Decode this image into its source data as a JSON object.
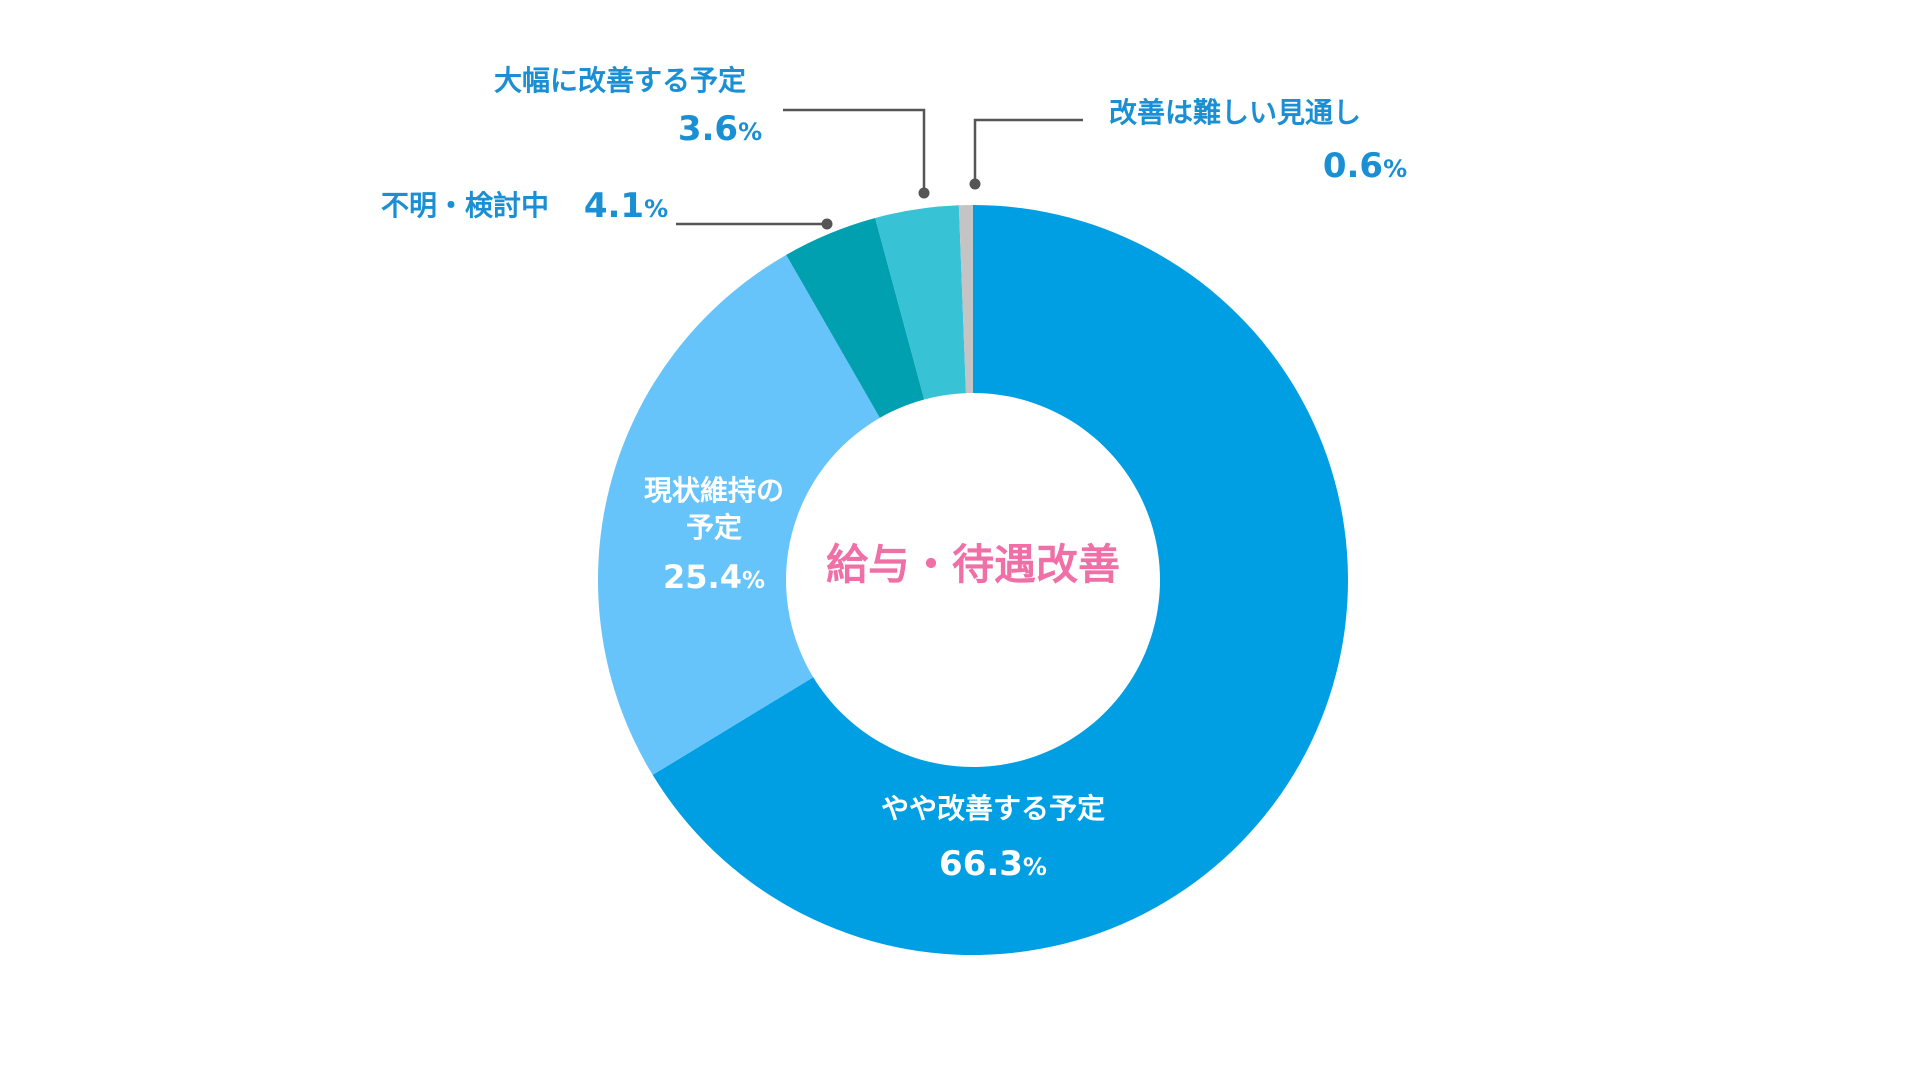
{
  "chart_data": {
    "type": "pie",
    "donut": true,
    "center_label": "給与・待遇改善",
    "percent_unit": "%",
    "colors": {
      "accent_text": "#1a8fd4",
      "center_text": "#ef6fa6",
      "leader_line": "#555555"
    },
    "slices": [
      {
        "label": "やや改善する予定",
        "value": 66.3,
        "value_text": "66.3",
        "color": "#009fe3"
      },
      {
        "label": "現状維持の予定",
        "value": 25.4,
        "value_text": "25.4",
        "color": "#66c4fa"
      },
      {
        "label": "不明・検討中",
        "value": 4.1,
        "value_text": "4.1",
        "color": "#00a0b0"
      },
      {
        "label": "大幅に改善する予定",
        "value": 3.6,
        "value_text": "3.6",
        "color": "#38c2d6"
      },
      {
        "label": "改善は難しい見通し",
        "value": 0.6,
        "value_text": "0.6",
        "color": "#c4c4c4"
      }
    ]
  }
}
